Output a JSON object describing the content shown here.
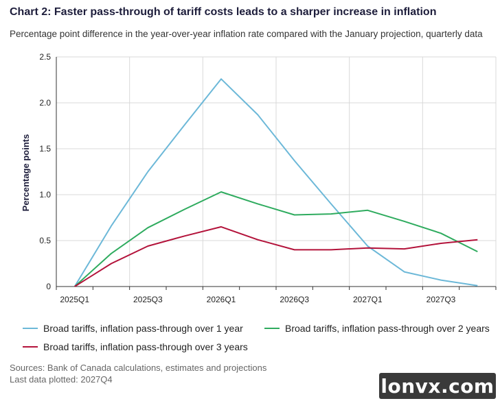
{
  "header": {
    "title": "Chart 2: Faster pass-through of tariff costs leads to a sharper increase in inflation",
    "subtitle": "Percentage point difference in the year-over-year inflation rate compared with the January projection, quarterly data"
  },
  "chart_data": {
    "type": "line",
    "title": "Chart 2: Faster pass-through of tariff costs leads to a sharper increase in inflation",
    "subtitle": "Percentage point difference in the year-over-year inflation rate compared with the January projection, quarterly data",
    "ylabel": "Percentage points",
    "xlabel": "",
    "ylim": [
      0,
      2.5
    ],
    "yticks": [
      "0",
      "0.5",
      "1.0",
      "1.5",
      "2.0",
      "2.5"
    ],
    "ytick_values": [
      0,
      0.5,
      1.0,
      1.5,
      2.0,
      2.5
    ],
    "categories": [
      "2025Q1",
      "2025Q2",
      "2025Q3",
      "2025Q4",
      "2026Q1",
      "2026Q2",
      "2026Q3",
      "2026Q4",
      "2027Q1",
      "2027Q2",
      "2027Q3",
      "2027Q4"
    ],
    "xtick_labels": [
      "2025Q1",
      "",
      "2025Q3",
      "",
      "2026Q1",
      "",
      "2026Q3",
      "",
      "2027Q1",
      "",
      "2027Q3",
      ""
    ],
    "grid": true,
    "legend_position": "bottom",
    "series": [
      {
        "name": "Broad tariffs, inflation pass-through over 1 year",
        "color": "#6cb8d8",
        "values": [
          0,
          0.66,
          1.25,
          1.76,
          2.26,
          1.87,
          1.37,
          0.9,
          0.44,
          0.16,
          0.07,
          0.01
        ]
      },
      {
        "name": "Broad tariffs, inflation pass-through over 2 years",
        "color": "#2eab5e",
        "values": [
          0,
          0.36,
          0.64,
          0.84,
          1.03,
          0.9,
          0.78,
          0.79,
          0.83,
          0.71,
          0.58,
          0.38
        ]
      },
      {
        "name": "Broad tariffs, inflation pass-through over 3 years",
        "color": "#b3123a",
        "values": [
          0,
          0.25,
          0.44,
          0.55,
          0.65,
          0.51,
          0.4,
          0.4,
          0.42,
          0.41,
          0.47,
          0.51
        ]
      }
    ]
  },
  "footer": {
    "source": "Sources: Bank of Canada calculations, estimates and projections",
    "last_plotted": "Last data plotted: 2027Q4"
  },
  "watermark": "lonvx.com"
}
